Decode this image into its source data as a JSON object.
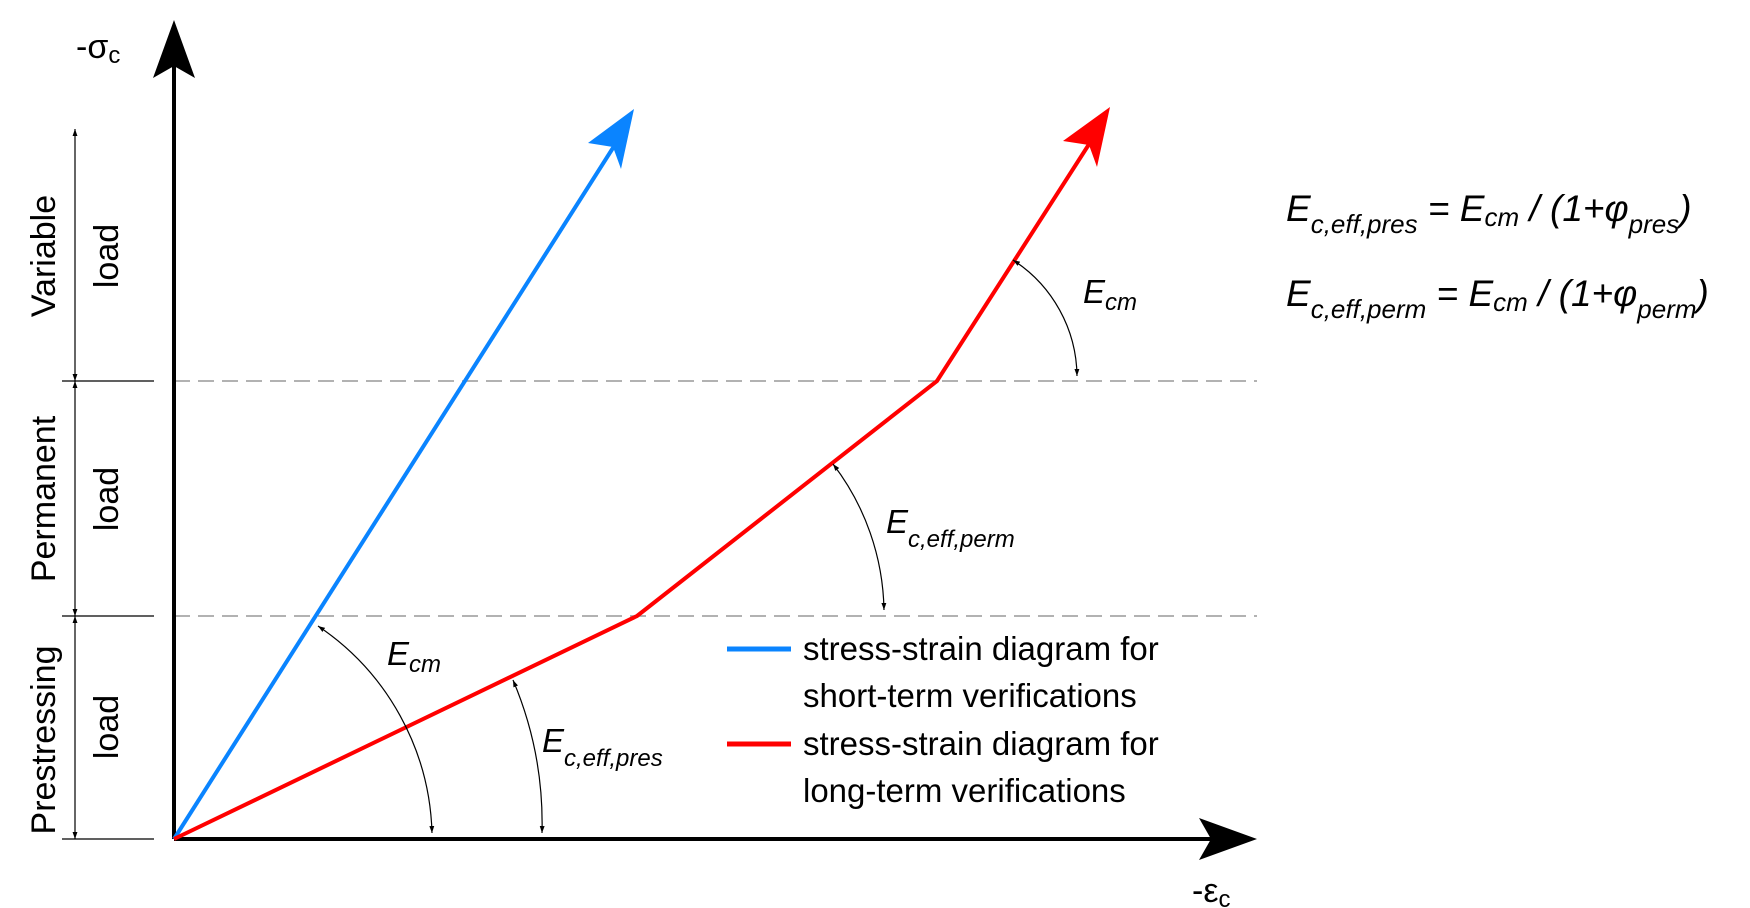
{
  "chart_data": {
    "type": "line",
    "title": "",
    "xlabel": "-εc",
    "ylabel": "-σc",
    "grid": false,
    "legend_placement": "bottom-right",
    "zones": [
      {
        "name": "Variable",
        "sub": "load"
      },
      {
        "name": "Permanent",
        "sub": "load"
      },
      {
        "name": "Prestressing",
        "sub": "load"
      }
    ],
    "series": [
      {
        "name": "stress-strain diagram for short-term verifications",
        "legend_lines": [
          "stress-strain diagram for",
          "short-term verifications"
        ],
        "color": "#0a84ff"
      },
      {
        "name": "stress-strain diagram for long-term verifications",
        "legend_lines": [
          "stress-strain diagram for",
          "long-term verifications"
        ],
        "color": "#ff0000"
      }
    ],
    "annotations": {
      "ecm_short": {
        "main": "E",
        "sub": "cm"
      },
      "eff_pres": {
        "main": "E",
        "sub": "c,eff,pres"
      },
      "eff_perm": {
        "main": "E",
        "sub": "c,eff,perm"
      },
      "ecm_long": {
        "main": "E",
        "sub": "cm"
      }
    },
    "formulas": [
      {
        "lhs_main": "E",
        "lhs_sub": "c,eff,pres",
        "eq": " = ",
        "rhs_main": "E",
        "rhs_sub": "cm",
        "mid": " / (1+φ",
        "phi_sub": "pres",
        "close": ")"
      },
      {
        "lhs_main": "E",
        "lhs_sub": "c,eff,perm",
        "eq": " = ",
        "rhs_main": "E",
        "rhs_sub": "cm",
        "mid": " / (1+φ",
        "phi_sub": "perm",
        "close": ")"
      }
    ],
    "axis_labels": {
      "y_main": "-σ",
      "y_sub": "c",
      "x_main": "-ε",
      "x_sub": "c"
    }
  }
}
